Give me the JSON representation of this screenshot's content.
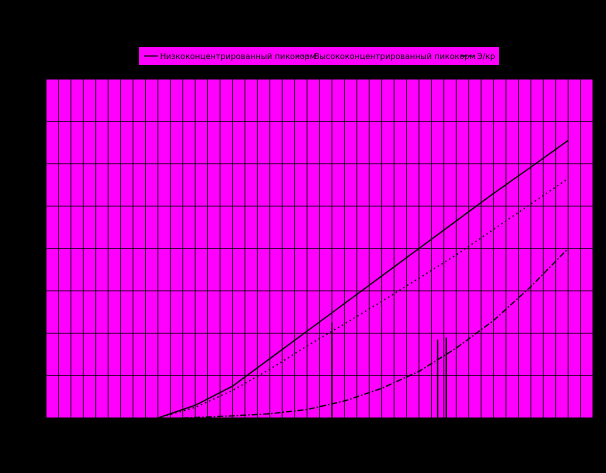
{
  "chart_data": {
    "type": "line",
    "title": "",
    "xlabel": "",
    "ylabel": "",
    "xlim": [
      0,
      44
    ],
    "ylim": [
      0,
      800
    ],
    "grid": true,
    "legend_position": "top",
    "colors": {
      "background": "#000000",
      "plot_area": "#ff00ff",
      "legend_bg": "#ff00ff",
      "grid": "#000000",
      "lines": "#000000"
    },
    "series": [
      {
        "name": "Низкоконцентрированный пикокорм",
        "style": "solid",
        "x": [
          9,
          12,
          15,
          18,
          21,
          24,
          27,
          30,
          33,
          36,
          39,
          42
        ],
        "y": [
          0,
          30,
          75,
          140,
          205,
          270,
          335,
          400,
          465,
          530,
          592,
          655
        ]
      },
      {
        "name": "Высококонцентрированный пикокорм",
        "style": "dotted",
        "x": [
          9,
          12,
          15,
          18,
          21,
          24,
          27,
          30,
          33,
          36,
          39,
          42
        ],
        "y": [
          0,
          25,
          65,
          115,
          170,
          222,
          275,
          330,
          385,
          445,
          505,
          565
        ]
      },
      {
        "name": "Э/кр",
        "style": "dashdot",
        "x": [
          11,
          15,
          18,
          21,
          24,
          27,
          30,
          33,
          36,
          39,
          42
        ],
        "y": [
          0,
          5,
          10,
          20,
          40,
          70,
          110,
          165,
          230,
          310,
          400
        ]
      }
    ],
    "markers": [
      {
        "x": 23,
        "y": 225
      },
      {
        "x": 31.5,
        "y": 185
      },
      {
        "x": 32.2,
        "y": 190
      }
    ]
  }
}
